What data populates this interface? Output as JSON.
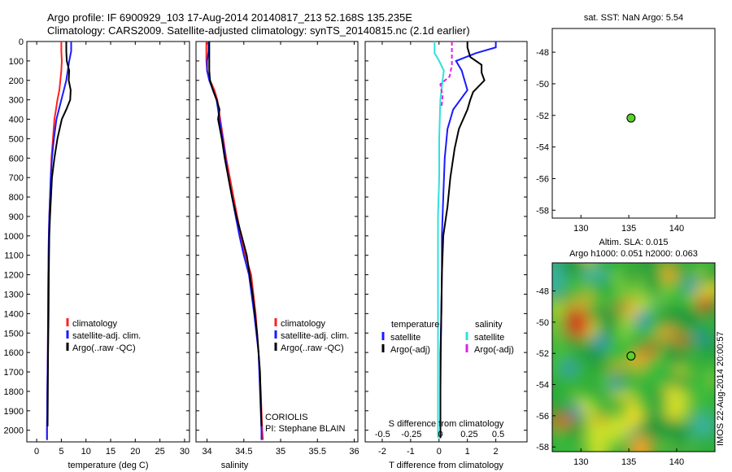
{
  "header": {
    "title_line1": "Argo profile: IF 6900929_103 17-Aug-2014 20140817_213 52.168S 135.235E",
    "title_line2": "Climatology: CARS2009. Satellite-adjusted climatology: synTS_20140815.nc (2.1d earlier)"
  },
  "colors": {
    "climatology": "#ff2020",
    "satellite": "#1a1aff",
    "argo": "#000000",
    "salinity_satellite": "#30e0e0",
    "salinity_argo": "#e020e0",
    "marker": "#5ad02a"
  },
  "chart_data": [
    {
      "type": "line",
      "panel": "temperature",
      "xlabel": "temperature (deg C)",
      "ylabel": "",
      "xlim": [
        -2,
        31
      ],
      "ylim": [
        2060,
        0
      ],
      "xticks": [
        "0",
        "5",
        "10",
        "15",
        "20",
        "25",
        "30"
      ],
      "yticks": [
        "0",
        "100",
        "200",
        "300",
        "400",
        "500",
        "600",
        "700",
        "800",
        "900",
        "1000",
        "1100",
        "1200",
        "1300",
        "1400",
        "1500",
        "1600",
        "1700",
        "1800",
        "1900",
        "2000"
      ],
      "legend": [
        "climatology",
        "satellite-adj. clim.",
        "Argo(..raw -QC)"
      ],
      "series": [
        {
          "name": "climatology",
          "x": [
            5.0,
            5.0,
            5.1,
            5.0,
            4.8,
            4.6,
            4.2,
            3.9,
            3.6,
            3.3,
            3.0,
            2.85,
            2.7,
            2.55,
            2.45,
            2.35,
            2.3,
            2.25,
            2.2,
            2.15,
            2.12,
            2.1,
            2.1
          ],
          "y": [
            0,
            50,
            100,
            150,
            200,
            250,
            300,
            350,
            400,
            500,
            600,
            700,
            800,
            900,
            1000,
            1200,
            1400,
            1600,
            1700,
            1800,
            1900,
            2000,
            2050
          ]
        },
        {
          "name": "satellite-adj. clim.",
          "x": [
            7.0,
            7.0,
            6.6,
            6.3,
            6.0,
            5.5,
            5.0,
            4.5,
            4.0,
            3.5,
            3.1,
            2.85,
            2.7,
            2.55,
            2.45,
            2.35,
            2.3,
            2.25,
            2.2,
            2.15,
            2.12,
            2.1,
            2.1
          ],
          "y": [
            0,
            50,
            100,
            150,
            200,
            250,
            300,
            350,
            400,
            500,
            600,
            700,
            800,
            900,
            1000,
            1200,
            1400,
            1600,
            1700,
            1800,
            1900,
            2000,
            2050
          ]
        },
        {
          "name": "Argo(..raw -QC)",
          "x": [
            6.0,
            6.0,
            6.1,
            6.6,
            6.5,
            6.9,
            6.8,
            6.0,
            5.1,
            4.2,
            3.6,
            3.1,
            2.9,
            2.7,
            2.55,
            2.45,
            2.4,
            2.3,
            2.25,
            2.2
          ],
          "y": [
            0,
            50,
            100,
            150,
            200,
            250,
            300,
            350,
            400,
            500,
            600,
            700,
            800,
            900,
            1000,
            1200,
            1400,
            1600,
            1800,
            1980
          ]
        }
      ]
    },
    {
      "type": "line",
      "panel": "salinity",
      "xlabel": "salinity",
      "xlim": [
        33.85,
        36.05
      ],
      "ylim": [
        2060,
        0
      ],
      "xticks": [
        "34",
        "34.5",
        "35",
        "35.5",
        "36"
      ],
      "legend": [
        "climatology",
        "satellite-adj. clim.",
        "Argo(..raw -QC)"
      ],
      "annotations": [
        "CORIOLIS",
        "PI: Stephane BLAIN"
      ],
      "series": [
        {
          "name": "climatology",
          "x": [
            33.99,
            33.99,
            33.99,
            34.0,
            34.04,
            34.1,
            34.14,
            34.18,
            34.22,
            34.26,
            34.31,
            34.36,
            34.41,
            34.46,
            34.52,
            34.6,
            34.66,
            34.7,
            34.73,
            34.74,
            34.75,
            34.76
          ],
          "y": [
            0,
            50,
            100,
            150,
            200,
            250,
            300,
            400,
            500,
            600,
            700,
            800,
            900,
            1000,
            1100,
            1200,
            1400,
            1600,
            1800,
            1900,
            2000,
            2050
          ]
        },
        {
          "name": "satellite-adj. clim.",
          "x": [
            34.02,
            34.02,
            34.0,
            34.0,
            34.03,
            34.08,
            34.13,
            34.17,
            34.21,
            34.25,
            34.29,
            34.34,
            34.39,
            34.44,
            34.5,
            34.57,
            34.64,
            34.7,
            34.72,
            34.73,
            34.74,
            34.74
          ],
          "y": [
            0,
            50,
            100,
            150,
            200,
            250,
            300,
            400,
            500,
            600,
            700,
            800,
            900,
            1000,
            1100,
            1200,
            1400,
            1600,
            1800,
            1900,
            2000,
            2050
          ]
        },
        {
          "name": "Argo(..raw -QC)",
          "x": [
            34.03,
            34.03,
            34.03,
            34.03,
            34.04,
            34.08,
            34.13,
            34.17,
            34.15,
            34.2,
            34.24,
            34.29,
            34.34,
            34.4,
            34.47,
            34.54,
            34.62,
            34.68,
            34.72,
            34.73,
            34.74
          ],
          "y": [
            0,
            50,
            100,
            150,
            200,
            250,
            300,
            350,
            400,
            500,
            600,
            700,
            800,
            900,
            1000,
            1100,
            1300,
            1500,
            1700,
            1850,
            1980
          ]
        }
      ]
    },
    {
      "type": "line",
      "panel": "differences",
      "xlabel": "T difference from climatology",
      "xlabel_top": "S difference from climatology",
      "xlim": [
        -2.6,
        3.1
      ],
      "ylim": [
        2060,
        0
      ],
      "xticks": [
        "-2",
        "-1",
        "0",
        "1",
        "2"
      ],
      "xticks_top": [
        "-0.5",
        "-0.25",
        "0",
        "0.25",
        "0.5"
      ],
      "legend": [
        "temperature",
        "satellite",
        "Argo(-adj)",
        "salinity",
        "satellite",
        "Argo(-adj)"
      ],
      "series": [
        {
          "name": "satellite",
          "x": [
            2.0,
            2.0,
            1.3,
            0.6,
            0.8,
            1.0,
            0.5,
            0.3,
            0.2,
            0.15,
            0.1,
            0.1,
            0.08,
            0.05,
            0.05,
            0.05,
            0.05,
            0.05
          ],
          "y": [
            0,
            30,
            60,
            100,
            150,
            250,
            350,
            450,
            600,
            800,
            1000,
            1200,
            1400,
            1600,
            1800,
            1900,
            2000,
            2040
          ]
        },
        {
          "name": "Argo(-adj)",
          "x": [
            1.0,
            1.0,
            1.1,
            1.5,
            1.5,
            1.6,
            1.2,
            1.1,
            1.0,
            0.7,
            0.55,
            0.4,
            0.3,
            0.15,
            0.1,
            0.08,
            0.06,
            0.05,
            0.05,
            0.05
          ],
          "y": [
            0,
            30,
            80,
            120,
            160,
            200,
            260,
            300,
            350,
            450,
            550,
            700,
            850,
            1000,
            1200,
            1400,
            1600,
            1800,
            1900,
            2040
          ]
        },
        {
          "name": "satellite",
          "x": [
            -0.05,
            -0.05,
            -0.01,
            0.03,
            0.02,
            0.0,
            -0.01,
            -0.01,
            -0.02,
            -0.02,
            -0.02,
            -0.02,
            -0.02,
            -0.02
          ],
          "y": [
            0,
            60,
            100,
            150,
            200,
            300,
            500,
            700,
            900,
            1100,
            1300,
            1500,
            1800,
            2040
          ]
        },
        {
          "name": "Argo(-adj)",
          "x": [
            0.1,
            0.1,
            0.1,
            0.08,
            0.0,
            0.02,
            0.01
          ],
          "y": [
            0,
            60,
            120,
            180,
            220,
            280,
            340
          ]
        }
      ]
    },
    {
      "type": "scatter",
      "panel": "sst-map",
      "title": "sat. SST: NaN Argo: 5.54",
      "xlim": [
        127,
        144
      ],
      "ylim": [
        -58.5,
        -46.5
      ],
      "xticks": [
        "130",
        "135",
        "140"
      ],
      "yticks": [
        "-48",
        "-50",
        "-52",
        "-54",
        "-56",
        "-58"
      ],
      "points": [
        {
          "x": 135.235,
          "y": -52.168
        }
      ]
    },
    {
      "type": "heatmap",
      "panel": "sla-map",
      "title_line1": "Altim. SLA: 0.015",
      "title_line2": "Argo h1000: 0.051 h2000: 0.063",
      "xlim": [
        127,
        144
      ],
      "ylim": [
        -58.3,
        -46.2
      ],
      "xticks": [
        "130",
        "135",
        "140"
      ],
      "yticks": [
        "-48",
        "-50",
        "-52",
        "-54",
        "-56",
        "-58"
      ],
      "side_label": "IMOS 22-Aug-2014 20:00:57",
      "points": [
        {
          "x": 135.235,
          "y": -52.168
        }
      ]
    }
  ]
}
